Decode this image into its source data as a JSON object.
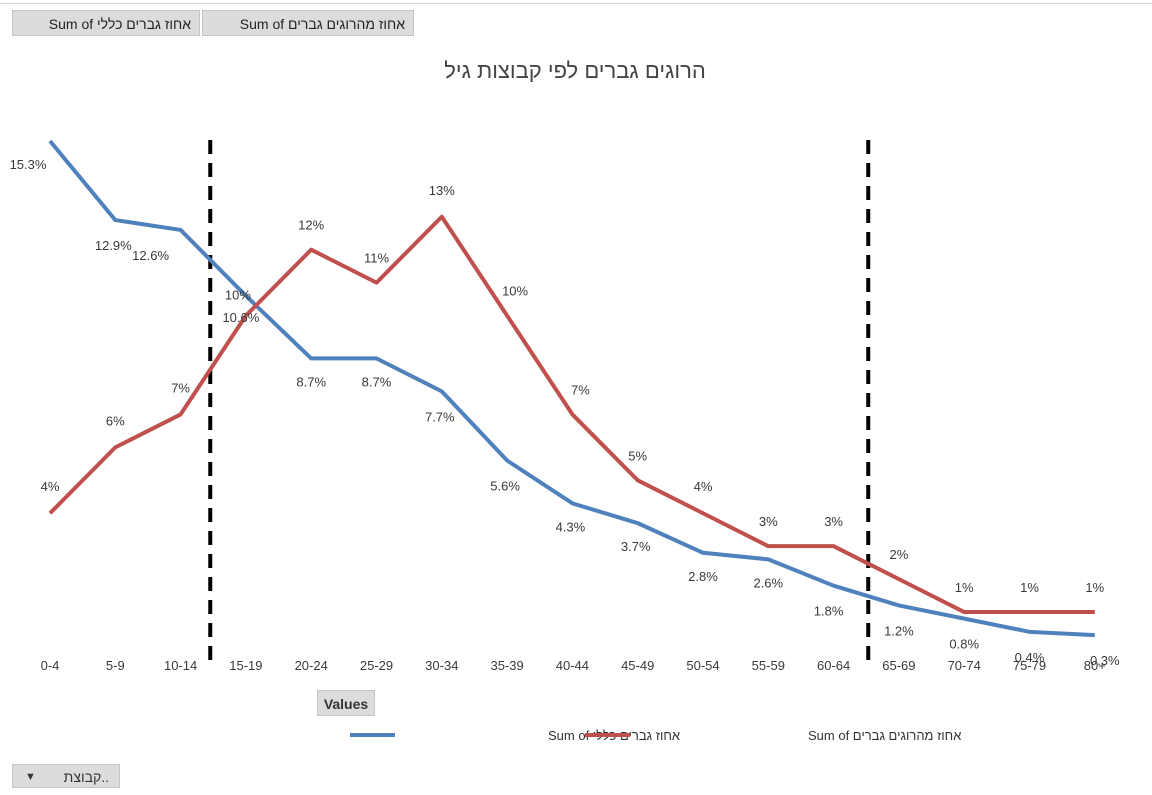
{
  "field_buttons": {
    "women_pct_field": "אחוז גברים כללי Sum of",
    "killed_pct_field": "אחוז מהרוגים גברים Sum of"
  },
  "values_button": "Values",
  "filter_button": {
    "label": "קבוצת..",
    "arrow": "▼"
  },
  "colors": {
    "blue": "#4f81bd",
    "red": "#c0504d",
    "dash": "#000000"
  },
  "chart_data": {
    "type": "line",
    "title": "הרוגים גברים לפי קבוצות גיל",
    "categories": [
      "0-4",
      "5-9",
      "10-14",
      "15-19",
      "20-24",
      "25-29",
      "30-34",
      "35-39",
      "40-44",
      "45-49",
      "50-54",
      "55-59",
      "60-64",
      "65-69",
      "70-74",
      "75-79",
      "80+"
    ],
    "category_labels": [
      "0-4",
      "5-9",
      "10-14",
      "15-19",
      "20-24",
      "25-29",
      "30-34",
      "35-39",
      "40-44",
      "45-49",
      "50-54",
      "55-59",
      "60-64",
      "65-69",
      "70-74",
      "75-79",
      "80+"
    ],
    "ylim": [
      0,
      17
    ],
    "vertical_dashed_markers": [
      "10-14|15-19",
      "60-64|65-69"
    ],
    "series": [
      {
        "name": "אחוז גברים כללי Sum of",
        "color": "#4f81bd",
        "values": [
          15.3,
          12.9,
          12.6,
          10.6,
          8.7,
          8.7,
          7.7,
          5.6,
          4.3,
          3.7,
          2.8,
          2.6,
          1.8,
          1.2,
          0.8,
          0.4,
          0.3
        ],
        "labels": [
          "15.3%",
          "12.9%",
          "12.6%",
          "10.6%",
          "8.7%",
          "8.7%",
          "7.7%",
          "5.6%",
          "4.3%",
          "3.7%",
          "2.8%",
          "2.6%",
          "1.8%",
          "1.2%",
          "0.8%",
          "0.4%",
          "0.3%"
        ]
      },
      {
        "name": "אחוז מהרוגים גברים Sum of",
        "color": "#c0504d",
        "values": [
          4,
          6,
          7,
          10,
          12,
          11,
          13,
          10,
          7,
          5,
          4,
          3,
          3,
          2,
          1,
          1,
          1
        ],
        "labels": [
          "4%",
          "6%",
          "7%",
          "10%",
          "12%",
          "11%",
          "13%",
          "10%",
          "7%",
          "5%",
          "4%",
          "3%",
          "3%",
          "2%",
          "1%",
          "1%",
          "1%"
        ]
      }
    ],
    "legend": [
      "אחוז גברים כללי Sum of",
      "אחוז מהרוגים גברים Sum of"
    ]
  }
}
